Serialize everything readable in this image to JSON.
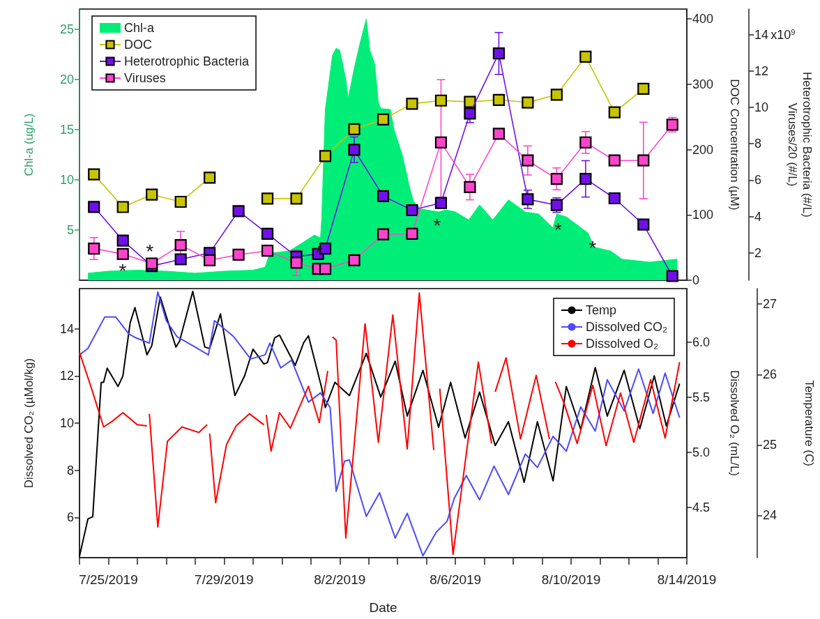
{
  "chart_data": [
    {
      "type": "line",
      "xlim": [
        "2019-07-24T00:00",
        "2019-08-14T00:00"
      ],
      "ylim": [
        0,
        27
      ],
      "yticks": [
        5,
        10,
        15,
        20,
        25
      ],
      "y2lim": [
        0,
        415
      ],
      "y2ticks": [
        0,
        100,
        200,
        300,
        400
      ],
      "y3lim": [
        0.5,
        15.4
      ],
      "y3ticks": [
        2,
        4,
        6,
        8,
        10,
        12,
        14
      ],
      "ylabel": "Chl-a (ug/L)",
      "y2label": "DOC Concentration (µM)",
      "y3label": "Heterotrophic Bacteria (#/L)\nViruses/20 (#/L)",
      "legend": "top left",
      "grid": false,
      "tick_labels": "y",
      "annotations": [
        "*",
        "*",
        "*",
        "*",
        "*",
        "*",
        "x10$^{9}$"
      ],
      "series": [
        {
          "name": "Chl-a",
          "type": "area",
          "color": "#00ee77",
          "x": [
            "2019-07-24T07:00",
            "2019-07-25T00:00",
            "2019-07-26T00:00",
            "2019-07-27T00:00",
            "2019-07-28T00:00",
            "2019-07-29T00:00",
            "2019-07-30T00:00",
            "2019-07-30T10:00",
            "2019-07-30T14:00",
            "2019-07-31T06:00",
            "2019-07-31T18:00",
            "2019-08-01T03:00",
            "2019-08-01T08:00",
            "2019-08-01T09:00",
            "2019-08-01T12:00",
            "2019-08-01T18:00",
            "2019-08-01T21:00",
            "2019-08-02T00:00",
            "2019-08-02T05:00",
            "2019-08-02T07:00",
            "2019-08-02T12:00",
            "2019-08-02T17:00",
            "2019-08-02T22:00",
            "2019-08-03T01:00",
            "2019-08-03T05:00",
            "2019-08-03T08:00",
            "2019-08-03T10:00",
            "2019-08-03T18:00",
            "2019-08-03T21:00",
            "2019-08-04T04:00",
            "2019-08-04T10:00",
            "2019-08-04T13:00",
            "2019-08-04T19:00",
            "2019-08-05T10:00",
            "2019-08-05T16:00",
            "2019-08-06T00:00",
            "2019-08-06T11:00",
            "2019-08-06T20:00",
            "2019-08-07T07:00",
            "2019-08-07T20:00",
            "2019-08-08T10:00",
            "2019-08-08T21:00",
            "2019-08-09T09:00",
            "2019-08-09T12:00",
            "2019-08-09T20:00",
            "2019-08-10T14:00",
            "2019-08-10T19:00",
            "2019-08-11T09:00",
            "2019-08-11T18:00",
            "2019-08-12T17:00",
            "2019-08-13T16:00"
          ],
          "values": [
            0.7,
            0.9,
            1.0,
            0.9,
            0.7,
            0.9,
            1.0,
            1.3,
            2.7,
            2.9,
            3.8,
            4.5,
            4.2,
            6.1,
            17,
            22.4,
            23.1,
            22.9,
            20,
            18.1,
            21.1,
            23.7,
            26,
            22.9,
            21.5,
            17.7,
            17.1,
            17,
            15,
            12.4,
            9.2,
            7.9,
            7.1,
            6.8,
            7.0,
            6.8,
            6.0,
            7.5,
            6.0,
            8.0,
            6.8,
            6.6,
            5.2,
            6.6,
            6.3,
            4.7,
            3.3,
            2.9,
            2.1,
            1.8,
            2.1
          ]
        },
        {
          "name": "DOC",
          "axis": "y2",
          "color": "#c8c400",
          "marker": "square",
          "x": [
            "2019-07-24T12:00",
            "2019-07-25T12:00",
            "2019-07-26T12:00",
            "2019-07-27T12:00",
            "2019-07-28T12:00",
            "2019-07-29T12:00",
            "2019-07-30T12:00",
            "2019-07-31T12:00",
            "2019-08-01T12:00",
            "2019-08-02T12:00",
            "2019-08-03T12:00",
            "2019-08-04T12:00",
            "2019-08-05T12:00",
            "2019-08-06T12:00",
            "2019-08-07T12:00",
            "2019-08-08T12:00",
            "2019-08-09T12:00",
            "2019-08-10T12:00",
            "2019-08-11T12:00",
            "2019-08-12T12:00"
          ],
          "values": [
            162,
            112,
            131,
            120,
            157,
            null,
            125,
            125,
            190,
            231,
            246,
            270,
            275,
            273,
            276,
            272,
            284,
            342,
            257,
            293
          ]
        },
        {
          "name": "Heterotrophic Bacteria",
          "axis": "y3",
          "color": "#7010e8",
          "marker": "square",
          "x": [
            "2019-07-24T12:00",
            "2019-07-25T12:00",
            "2019-07-26T12:00",
            "2019-07-27T12:00",
            "2019-07-28T12:00",
            "2019-07-29T12:00",
            "2019-07-30T12:00",
            "2019-07-31T12:00",
            "2019-08-01T06:00",
            "2019-08-01T12:00",
            "2019-08-02T12:00",
            "2019-08-03T12:00",
            "2019-08-04T12:00",
            "2019-08-05T12:00",
            "2019-08-06T12:00",
            "2019-08-07T12:00",
            "2019-08-08T12:00",
            "2019-08-09T12:00",
            "2019-08-10T12:00",
            "2019-08-11T12:00",
            "2019-08-12T12:00",
            "2019-08-13T12:00"
          ],
          "values": [
            4.53,
            2.68,
            1.28,
            1.65,
            2.0,
            4.3,
            3.05,
            1.8,
            1.94,
            2.24,
            7.67,
            5.12,
            4.35,
            4.75,
            9.66,
            12.96,
            4.95,
            4.63,
            6.07,
            5.0,
            3.56,
            0.73
          ],
          "errors": [
            null,
            null,
            null,
            null,
            null,
            null,
            null,
            null,
            null,
            null,
            0.7,
            null,
            null,
            0.3,
            0.5,
            1.15,
            0.5,
            0.4,
            1.0,
            null,
            null,
            null
          ]
        },
        {
          "name": "Viruses",
          "axis": "y3",
          "color": "#ff44cc",
          "marker": "square",
          "x": [
            "2019-07-24T12:00",
            "2019-07-25T12:00",
            "2019-07-26T12:00",
            "2019-07-27T12:00",
            "2019-07-28T12:00",
            "2019-07-29T12:00",
            "2019-07-30T12:00",
            "2019-07-31T12:00",
            "2019-08-01T06:00",
            "2019-08-01T12:00",
            "2019-08-02T12:00",
            "2019-08-03T12:00",
            "2019-08-04T12:00",
            "2019-08-05T12:00",
            "2019-08-06T12:00",
            "2019-08-07T12:00",
            "2019-08-08T12:00",
            "2019-08-09T12:00",
            "2019-08-10T12:00",
            "2019-08-11T12:00",
            "2019-08-12T12:00",
            "2019-08-13T12:00"
          ],
          "values": [
            2.24,
            1.94,
            1.42,
            2.43,
            1.6,
            1.9,
            2.12,
            1.46,
            1.13,
            1.13,
            1.6,
            3.02,
            3.05,
            8.07,
            5.62,
            8.55,
            7.08,
            6.07,
            8.07,
            7.08,
            7.08,
            9.05
          ],
          "errors": [
            0.6,
            null,
            null,
            0.75,
            null,
            null,
            null,
            0.7,
            null,
            null,
            null,
            null,
            null,
            3.45,
            0.7,
            null,
            0.8,
            0.6,
            0.6,
            null,
            2.1,
            0.4
          ]
        }
      ]
    },
    {
      "type": "line",
      "xlabel": "Date",
      "xlim": [
        "2019-07-24T00:00",
        "2019-08-14T00:00"
      ],
      "xticks": [
        {
          "value": "2019-07-24T00:00",
          "label": null
        },
        {
          "value": "2019-07-25T00:00",
          "label": "7/25/2019"
        },
        {
          "value": "2019-07-26T00:00",
          "label": null
        },
        {
          "value": "2019-07-27T00:00",
          "label": null
        },
        {
          "value": "2019-07-28T00:00",
          "label": null
        },
        {
          "value": "2019-07-29T00:00",
          "label": "7/29/2019"
        },
        {
          "value": "2019-07-30T00:00",
          "label": null
        },
        {
          "value": "2019-07-31T00:00",
          "label": null
        },
        {
          "value": "2019-08-01T00:00",
          "label": null
        },
        {
          "value": "2019-08-02T00:00",
          "label": "8/2/2019"
        },
        {
          "value": "2019-08-03T00:00",
          "label": null
        },
        {
          "value": "2019-08-04T00:00",
          "label": null
        },
        {
          "value": "2019-08-05T00:00",
          "label": null
        },
        {
          "value": "2019-08-06T00:00",
          "label": "8/6/2019"
        },
        {
          "value": "2019-08-07T00:00",
          "label": null
        },
        {
          "value": "2019-08-08T00:00",
          "label": null
        },
        {
          "value": "2019-08-09T00:00",
          "label": null
        },
        {
          "value": "2019-08-10T00:00",
          "label": "8/10/2019"
        },
        {
          "value": "2019-08-11T00:00",
          "label": null
        },
        {
          "value": "2019-08-12T00:00",
          "label": null
        },
        {
          "value": "2019-08-13T00:00",
          "label": null
        },
        {
          "value": "2019-08-14T00:00",
          "label": "8/14/2019"
        }
      ],
      "ylim": [
        4.3,
        15.7
      ],
      "yticks": [
        6,
        8,
        10,
        12,
        14
      ],
      "y2lim": [
        4.04,
        6.49
      ],
      "y2ticks": [
        4.5,
        {
          "value": 5,
          "label": "5.0"
        },
        5.5,
        {
          "value": 6,
          "label": "6.0"
        }
      ],
      "y3lim": [
        23.4,
        27.22
      ],
      "y3ticks": [
        24,
        25,
        26,
        27
      ],
      "ylabel": "Dissolved CO₂ (µMol/kg)",
      "y2label": "Dissolved O₂ (mL/L)",
      "y3label": "Temperature (C)",
      "legend": "top right",
      "grid": false,
      "series": [
        {
          "name": "Temp",
          "axis": "y3",
          "color": "#000000",
          "x": [
            "2019-07-24T00:00",
            "2019-07-24T07:00",
            "2019-07-24T11:00",
            "2019-07-24T18:00",
            "2019-07-24T20:00",
            "2019-07-24T23:00",
            "2019-07-25T08:00",
            "2019-07-25T12:00",
            "2019-07-25T18:00",
            "2019-07-25T22:00",
            "2019-07-26T08:00",
            "2019-07-26T12:00",
            "2019-07-26T19:00",
            "2019-07-27T08:00",
            "2019-07-27T11:00",
            "2019-07-27T22:00",
            "2019-07-28T08:00",
            "2019-07-28T12:00",
            "2019-07-28T21:00",
            "2019-07-29T09:00",
            "2019-07-29T17:00",
            "2019-07-30T00:00",
            "2019-07-30T09:00",
            "2019-07-30T12:00",
            "2019-07-30T18:00",
            "2019-07-30T22:00",
            "2019-07-31T11:00",
            "2019-07-31T18:00",
            "2019-07-31T22:00",
            "2019-08-01T09:00",
            "2019-08-01T12:00",
            "2019-08-01T20:00",
            "2019-08-02T08:00",
            "2019-08-02T22:00",
            "2019-08-03T10:00",
            "2019-08-03T22:00",
            "2019-08-04T08:00",
            "2019-08-04T21:00",
            "2019-08-05T10:00",
            "2019-08-05T20:00",
            "2019-08-06T08:00",
            "2019-08-06T20:00",
            "2019-08-07T09:00",
            "2019-08-07T20:00",
            "2019-08-08T09:00",
            "2019-08-08T20:00",
            "2019-08-09T09:00",
            "2019-08-09T20:00",
            "2019-08-10T08:00",
            "2019-08-10T20:00",
            "2019-08-11T06:00",
            "2019-08-11T20:00",
            "2019-08-12T09:00",
            "2019-08-12T21:00",
            "2019-08-13T07:00",
            "2019-08-13T18:00"
          ],
          "values": [
            23.42,
            23.95,
            23.98,
            25.89,
            25.89,
            26.09,
            25.83,
            25.98,
            26.73,
            26.95,
            26.28,
            26.41,
            27.1,
            26.39,
            26.47,
            27.18,
            26.39,
            26.37,
            26.86,
            25.7,
            25.98,
            26.36,
            26.15,
            26.17,
            26.52,
            26.56,
            26.13,
            26.45,
            26.55,
            25.81,
            25.53,
            25.89,
            25.7,
            26.3,
            25.68,
            26.19,
            25.41,
            26.06,
            25.25,
            25.89,
            25.1,
            25.75,
            24.99,
            25.33,
            24.47,
            25.33,
            24.49,
            25.83,
            25.22,
            26.1,
            25.41,
            26.06,
            25.23,
            25.98,
            25.27,
            25.87
          ]
        },
        {
          "name": "Dissolved CO₂",
          "axis": "y",
          "color": "#4a4aff",
          "x": [
            "2019-07-24T00:00",
            "2019-07-24T07:00",
            "2019-07-24T21:00",
            "2019-07-25T06:00",
            "2019-07-25T17:00",
            "2019-07-25T23:00",
            "2019-07-26T10:00",
            "2019-07-26T17:00",
            "2019-07-27T00:00",
            "2019-07-27T09:00",
            "2019-07-28T00:00",
            "2019-07-28T11:00",
            "2019-07-28T16:00",
            "2019-07-29T08:00",
            "2019-07-29T22:00",
            "2019-07-30T10:00",
            "2019-07-30T14:00",
            "2019-07-30T23:00",
            "2019-07-31T08:00",
            "2019-07-31T22:00",
            "2019-08-01T08:00",
            "2019-08-01T16:00",
            "2019-08-01T21:00",
            "2019-08-02T04:00",
            "2019-08-02T08:00",
            "2019-08-02T22:00",
            "2019-08-03T09:00",
            "2019-08-03T22:00",
            "2019-08-04T08:00",
            "2019-08-04T21:00",
            "2019-08-05T08:00",
            "2019-08-05T17:00",
            "2019-08-05T23:00",
            "2019-08-06T09:00",
            "2019-08-06T20:00",
            "2019-08-07T08:00",
            "2019-08-07T20:00",
            "2019-08-08T10:00",
            "2019-08-08T20:00",
            "2019-08-09T09:00",
            "2019-08-09T20:00",
            "2019-08-10T08:00",
            "2019-08-10T20:00",
            "2019-08-11T06:00",
            "2019-08-11T20:00",
            "2019-08-12T08:00",
            "2019-08-12T20:00",
            "2019-08-13T06:00",
            "2019-08-13T18:00"
          ],
          "values": [
            12.89,
            13.17,
            14.5,
            14.5,
            13.78,
            13.61,
            13.39,
            15.56,
            14.34,
            13.66,
            13.22,
            12.89,
            14.34,
            13.66,
            12.72,
            12.89,
            13.39,
            12.34,
            12.67,
            10.89,
            11.28,
            10.66,
            7.11,
            8.39,
            8.44,
            6.05,
            7.05,
            5.13,
            6.18,
            4.38,
            5.38,
            5.84,
            6.81,
            7.78,
            6.75,
            8.18,
            6.98,
            8.69,
            8.12,
            9.44,
            8.81,
            10.69,
            9.66,
            11.84,
            10.52,
            12.29,
            10.41,
            12.12,
            10.23
          ]
        },
        {
          "name": "Dissolved O₂",
          "axis": "y2",
          "color": "#ff0000",
          "x": [
            "2019-07-24T00:00",
            "2019-07-24T10:00",
            "2019-07-24T20:00",
            "2019-07-25T03:00",
            "2019-07-25T12:00",
            "2019-07-26T00:00",
            "2019-07-26T08:00",
            "2019-07-26T09:00",
            "2019-07-26T10:00",
            "2019-07-26T17:00",
            "2019-07-27T01:00",
            "2019-07-27T13:00",
            "2019-07-28T03:00",
            "2019-07-28T10:00",
            "2019-07-28T11:00",
            "2019-07-28T12:00",
            "2019-07-28T17:00",
            "2019-07-29T02:00",
            "2019-07-29T10:00",
            "2019-07-29T21:00",
            "2019-07-30T09:00",
            "2019-07-30T10:00",
            "2019-07-30T11:00",
            "2019-07-30T15:00",
            "2019-07-30T22:00",
            "2019-07-31T07:00",
            "2019-07-31T22:00",
            "2019-08-01T07:00",
            "2019-08-01T14:00",
            "2019-08-01T16:00",
            "2019-08-01T18:00",
            "2019-08-01T21:00",
            "2019-08-02T05:00",
            "2019-08-02T21:00",
            "2019-08-03T08:00",
            "2019-08-03T20:00",
            "2019-08-04T08:00",
            "2019-08-04T18:00",
            "2019-08-05T06:00",
            "2019-08-05T08:00",
            "2019-08-05T11:00",
            "2019-08-05T22:00",
            "2019-08-06T19:00",
            "2019-08-07T06:00",
            "2019-08-07T07:00",
            "2019-08-07T09:00",
            "2019-08-07T18:00",
            "2019-08-08T06:00",
            "2019-08-08T19:00",
            "2019-08-09T06:00",
            "2019-08-09T08:00",
            "2019-08-09T11:00",
            "2019-08-09T18:00",
            "2019-08-10T05:00",
            "2019-08-10T18:00",
            "2019-08-11T05:00",
            "2019-08-11T17:00",
            "2019-08-12T04:00",
            "2019-08-12T18:00",
            "2019-08-13T06:00",
            "2019-08-13T18:00"
          ],
          "values": [
            5.91,
            5.58,
            5.23,
            5.28,
            5.36,
            5.25,
            5.24,
            null,
            5.35,
            4.32,
            5.1,
            5.23,
            5.18,
            5.25,
            null,
            5.17,
            4.54,
            5.07,
            5.24,
            5.35,
            5.25,
            null,
            5.34,
            5.01,
            5.36,
            5.22,
            5.6,
            5.27,
            5.74,
            null,
            6.05,
            6.02,
            4.22,
            6.17,
            5.09,
            6.25,
            5.03,
            6.45,
            5.02,
            null,
            5.58,
            4.07,
            5.82,
            5.08,
            null,
            5.55,
            5.86,
            5.12,
            5.7,
            5.12,
            null,
            5.64,
            5.45,
            5.08,
            5.61,
            5.06,
            5.54,
            5.09,
            5.66,
            5.13,
            5.82
          ]
        }
      ]
    }
  ]
}
